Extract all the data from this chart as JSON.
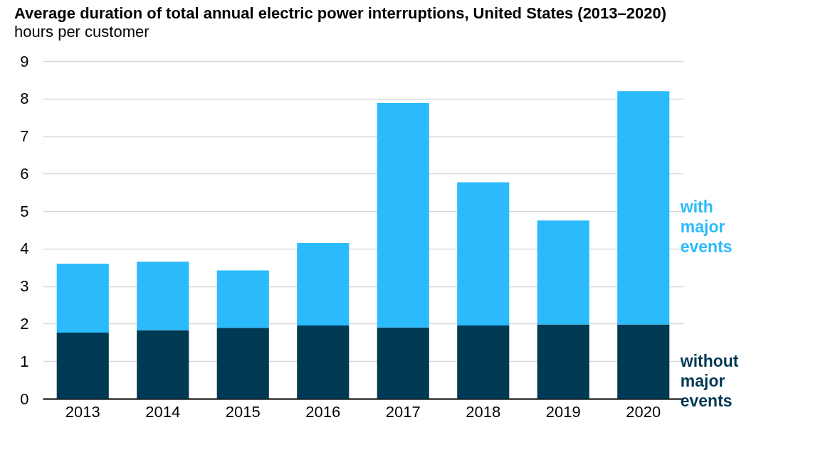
{
  "chart_data": {
    "type": "bar",
    "title": "Average duration of total annual electric power interruptions, United States (2013–2020)",
    "subtitle": "hours per customer",
    "categories": [
      "2013",
      "2014",
      "2015",
      "2016",
      "2017",
      "2018",
      "2019",
      "2020"
    ],
    "stacked": true,
    "series": [
      {
        "name": "without major events",
        "color": "#003953",
        "values": [
          1.76,
          1.83,
          1.89,
          1.95,
          1.9,
          1.95,
          1.98,
          1.98
        ]
      },
      {
        "name": "with major events",
        "color": "#2bbbfc",
        "values": [
          1.84,
          1.82,
          1.53,
          2.2,
          5.98,
          3.82,
          2.77,
          6.22
        ]
      }
    ],
    "ylim": [
      0,
      9
    ],
    "yticks": [
      0,
      1,
      2,
      3,
      4,
      5,
      6,
      7,
      8,
      9
    ],
    "grid": "y"
  }
}
